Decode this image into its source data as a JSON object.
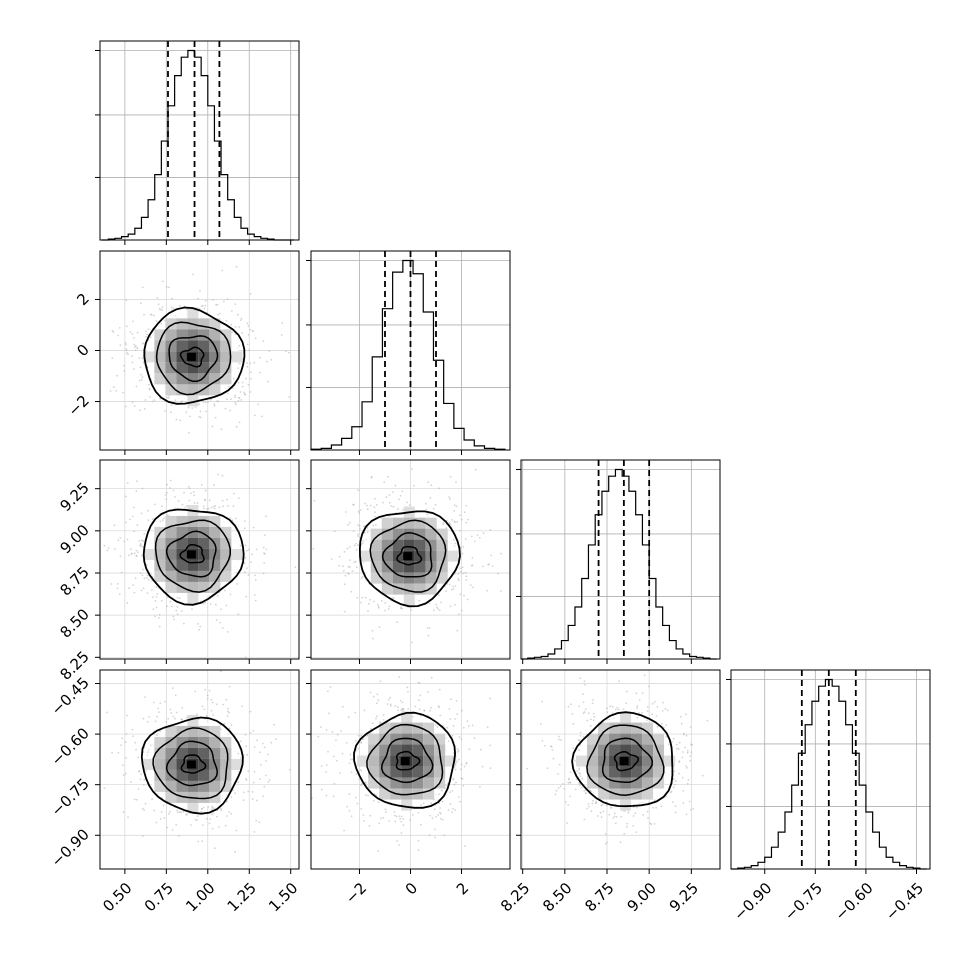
{
  "chart_data": {
    "type": "corner",
    "parameters": [
      {
        "range": [
          0.35,
          1.55
        ],
        "ticks": [
          "0.50",
          "0.75",
          "1.00",
          "1.25",
          "1.50"
        ],
        "tick_values": [
          0.5,
          0.75,
          1.0,
          1.25,
          1.5
        ],
        "quantiles": [
          0.76,
          0.92,
          1.07
        ]
      },
      {
        "range": [
          -3.9,
          3.9
        ],
        "ticks": [
          "−2",
          "0",
          "2"
        ],
        "tick_values": [
          -2,
          0,
          2
        ],
        "quantiles": [
          -1.0,
          0.0,
          1.0
        ]
      },
      {
        "range": [
          8.24,
          9.42
        ],
        "ticks": [
          "8.25",
          "8.50",
          "8.75",
          "9.00",
          "9.25"
        ],
        "tick_values": [
          8.25,
          8.5,
          8.75,
          9.0,
          9.25
        ],
        "quantiles": [
          8.7,
          8.85,
          9.0
        ]
      },
      {
        "range": [
          -1.0,
          -0.41
        ],
        "ticks": [
          "−0.90",
          "−0.75",
          "−0.60",
          "−0.45"
        ],
        "tick_values": [
          -0.9,
          -0.75,
          -0.6,
          -0.45
        ],
        "quantiles": [
          -0.79,
          -0.71,
          -0.63
        ]
      }
    ],
    "histograms": [
      {
        "x": [
          0.38,
          0.42,
          0.46,
          0.5,
          0.54,
          0.58,
          0.62,
          0.66,
          0.7,
          0.74,
          0.78,
          0.82,
          0.86,
          0.9,
          0.94,
          0.98,
          1.02,
          1.06,
          1.1,
          1.14,
          1.18,
          1.22,
          1.26,
          1.3,
          1.34,
          1.38,
          1.42,
          1.46,
          1.5
        ],
        "counts": [
          0,
          1,
          2,
          4,
          7,
          14,
          27,
          48,
          78,
          118,
          160,
          196,
          218,
          226,
          218,
          196,
          160,
          118,
          78,
          48,
          27,
          14,
          7,
          4,
          2,
          1,
          0,
          0,
          0
        ]
      },
      {
        "x": [
          -3.7,
          -3.3,
          -2.9,
          -2.5,
          -2.1,
          -1.7,
          -1.3,
          -0.9,
          -0.5,
          -0.1,
          0.3,
          0.7,
          1.1,
          1.5,
          1.9,
          2.3,
          2.7,
          3.1,
          3.5
        ],
        "counts": [
          1,
          2,
          6,
          14,
          28,
          58,
          112,
          170,
          214,
          228,
          212,
          166,
          108,
          56,
          26,
          12,
          5,
          2,
          1
        ]
      },
      {
        "x": [
          8.26,
          8.3,
          8.34,
          8.38,
          8.42,
          8.46,
          8.5,
          8.54,
          8.58,
          8.62,
          8.66,
          8.7,
          8.74,
          8.78,
          8.82,
          8.86,
          8.9,
          8.94,
          8.98,
          9.02,
          9.06,
          9.1,
          9.14,
          9.18,
          9.22,
          9.26,
          9.3,
          9.34,
          9.38
        ],
        "counts": [
          0,
          1,
          2,
          3,
          6,
          12,
          22,
          40,
          62,
          96,
          136,
          172,
          200,
          218,
          226,
          218,
          200,
          172,
          136,
          96,
          62,
          40,
          22,
          12,
          6,
          3,
          2,
          1,
          0
        ]
      },
      {
        "x": [
          -0.99,
          -0.97,
          -0.95,
          -0.93,
          -0.91,
          -0.89,
          -0.87,
          -0.85,
          -0.83,
          -0.81,
          -0.79,
          -0.77,
          -0.75,
          -0.73,
          -0.71,
          -0.69,
          -0.67,
          -0.65,
          -0.63,
          -0.61,
          -0.59,
          -0.57,
          -0.55,
          -0.53,
          -0.51,
          -0.49,
          -0.47,
          -0.45,
          -0.43
        ],
        "counts": [
          0,
          1,
          2,
          4,
          8,
          14,
          26,
          44,
          68,
          100,
          138,
          172,
          200,
          218,
          226,
          218,
          200,
          172,
          138,
          100,
          68,
          44,
          26,
          14,
          8,
          4,
          2,
          1,
          0
        ]
      }
    ],
    "joint_centers": {
      "1-0": [
        0.91,
        -0.25
      ],
      "2-0": [
        0.91,
        8.86
      ],
      "2-1": [
        -0.05,
        8.85
      ],
      "3-0": [
        0.91,
        -0.69
      ],
      "3-1": [
        -0.15,
        -0.68
      ],
      "3-2": [
        8.86,
        -0.68
      ]
    },
    "grid": true,
    "colors": {
      "line": "#000000",
      "scatter": "#b0b0b0",
      "grid": "#b0b0b0"
    }
  }
}
